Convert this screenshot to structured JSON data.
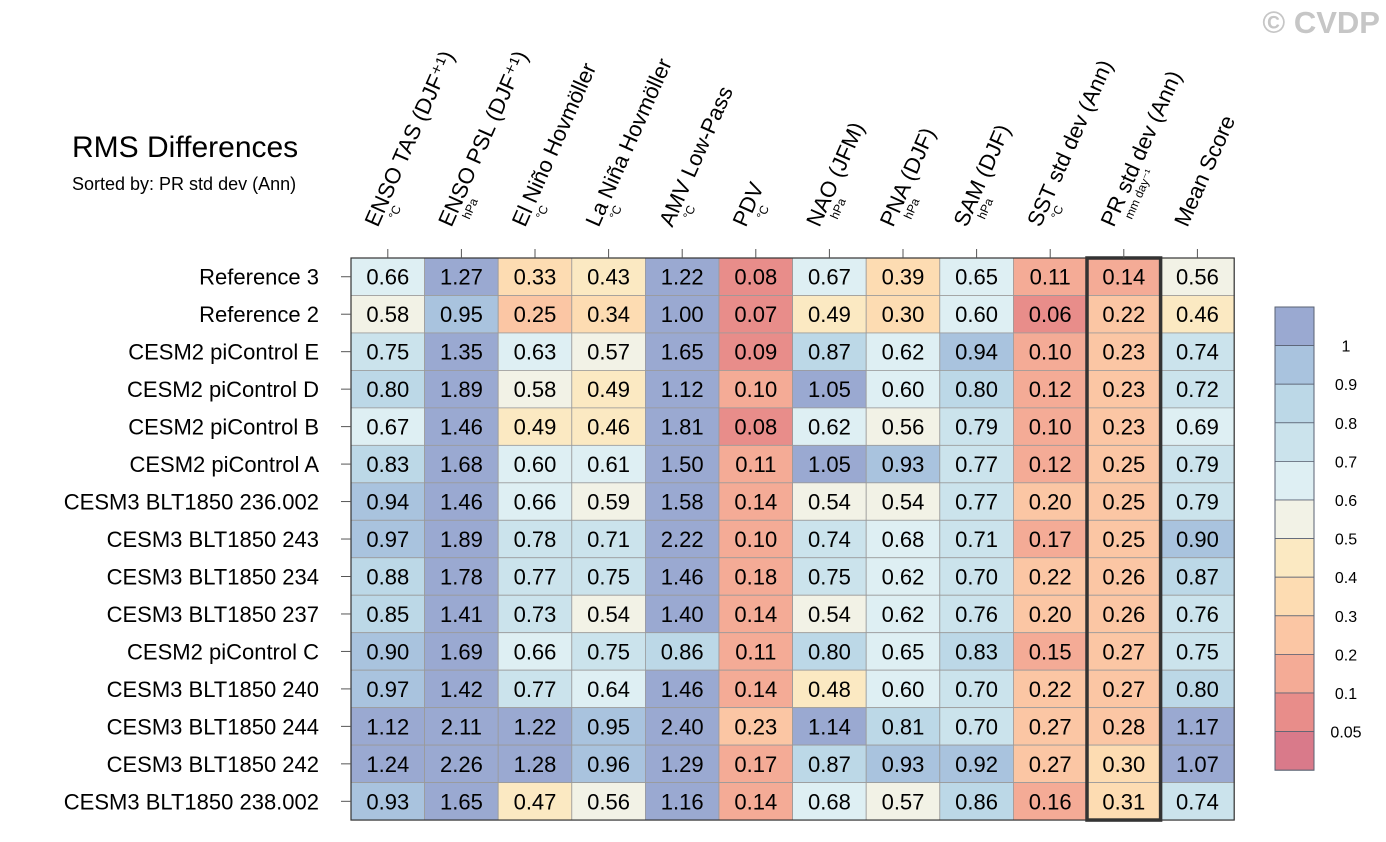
{
  "copyright": "© CVDP",
  "chart_data": {
    "type": "heatmap",
    "title": "RMS Differences",
    "subtitle": "Sorted by: PR std dev (Ann)",
    "columns": [
      {
        "label": "ENSO TAS (DJF⁺¹)",
        "unit": "°C"
      },
      {
        "label": "ENSO PSL (DJF⁺¹)",
        "unit": "hPa"
      },
      {
        "label": "El Niño Hovmöller",
        "unit": "°C"
      },
      {
        "label": "La Niña Hovmöller",
        "unit": "°C"
      },
      {
        "label": "AMV Low-Pass",
        "unit": "°C"
      },
      {
        "label": "PDV",
        "unit": "°C"
      },
      {
        "label": "NAO (JFM)",
        "unit": "hPa"
      },
      {
        "label": "PNA (DJF)",
        "unit": "hPa"
      },
      {
        "label": "SAM (DJF)",
        "unit": "hPa"
      },
      {
        "label": "SST std dev (Ann)",
        "unit": "°C"
      },
      {
        "label": "PR std dev (Ann)",
        "unit": "mm day⁻¹"
      },
      {
        "label": "Mean Score",
        "unit": ""
      }
    ],
    "highlighted_column": "PR std dev (Ann)",
    "rows": [
      {
        "label": "Reference 3",
        "values": [
          0.66,
          1.27,
          0.33,
          0.43,
          1.22,
          0.08,
          0.67,
          0.39,
          0.65,
          0.11,
          0.14,
          0.56
        ]
      },
      {
        "label": "Reference 2",
        "values": [
          0.58,
          0.95,
          0.25,
          0.34,
          1.0,
          0.07,
          0.49,
          0.3,
          0.6,
          0.06,
          0.22,
          0.46
        ]
      },
      {
        "label": "CESM2 piControl E",
        "values": [
          0.75,
          1.35,
          0.63,
          0.57,
          1.65,
          0.09,
          0.87,
          0.62,
          0.94,
          0.1,
          0.23,
          0.74
        ]
      },
      {
        "label": "CESM2 piControl D",
        "values": [
          0.8,
          1.89,
          0.58,
          0.49,
          1.12,
          0.1,
          1.05,
          0.6,
          0.8,
          0.12,
          0.23,
          0.72
        ]
      },
      {
        "label": "CESM2 piControl B",
        "values": [
          0.67,
          1.46,
          0.49,
          0.46,
          1.81,
          0.08,
          0.62,
          0.56,
          0.79,
          0.1,
          0.23,
          0.69
        ]
      },
      {
        "label": "CESM2 piControl A",
        "values": [
          0.83,
          1.68,
          0.6,
          0.61,
          1.5,
          0.11,
          1.05,
          0.93,
          0.77,
          0.12,
          0.25,
          0.79
        ]
      },
      {
        "label": "CESM3 BLT1850 236.002",
        "values": [
          0.94,
          1.46,
          0.66,
          0.59,
          1.58,
          0.14,
          0.54,
          0.54,
          0.77,
          0.2,
          0.25,
          0.79
        ]
      },
      {
        "label": "CESM3 BLT1850 243",
        "values": [
          0.97,
          1.89,
          0.78,
          0.71,
          2.22,
          0.1,
          0.74,
          0.68,
          0.71,
          0.17,
          0.25,
          0.9
        ]
      },
      {
        "label": "CESM3 BLT1850 234",
        "values": [
          0.88,
          1.78,
          0.77,
          0.75,
          1.46,
          0.18,
          0.75,
          0.62,
          0.7,
          0.22,
          0.26,
          0.87
        ]
      },
      {
        "label": "CESM3 BLT1850 237",
        "values": [
          0.85,
          1.41,
          0.73,
          0.54,
          1.4,
          0.14,
          0.54,
          0.62,
          0.76,
          0.2,
          0.26,
          0.76
        ]
      },
      {
        "label": "CESM2 piControl C",
        "values": [
          0.9,
          1.69,
          0.66,
          0.75,
          0.86,
          0.11,
          0.8,
          0.65,
          0.83,
          0.15,
          0.27,
          0.75
        ]
      },
      {
        "label": "CESM3 BLT1850 240",
        "values": [
          0.97,
          1.42,
          0.77,
          0.64,
          1.46,
          0.14,
          0.48,
          0.6,
          0.7,
          0.22,
          0.27,
          0.8
        ]
      },
      {
        "label": "CESM3 BLT1850 244",
        "values": [
          1.12,
          2.11,
          1.22,
          0.95,
          2.4,
          0.23,
          1.14,
          0.81,
          0.7,
          0.27,
          0.28,
          1.17
        ]
      },
      {
        "label": "CESM3 BLT1850 242",
        "values": [
          1.24,
          2.26,
          1.28,
          0.96,
          1.29,
          0.17,
          0.87,
          0.93,
          0.92,
          0.27,
          0.3,
          1.07
        ]
      },
      {
        "label": "CESM3 BLT1850 238.002",
        "values": [
          0.93,
          1.65,
          0.47,
          0.56,
          1.16,
          0.14,
          0.68,
          0.57,
          0.86,
          0.16,
          0.31,
          0.74
        ]
      }
    ],
    "colorbar": {
      "levels": [
        "1",
        "0.9",
        "0.8",
        "0.7",
        "0.6",
        "0.5",
        "0.4",
        "0.3",
        "0.2",
        "0.1",
        "0.05"
      ],
      "thresholds": [
        1.0,
        0.9,
        0.8,
        0.7,
        0.6,
        0.5,
        0.4,
        0.3,
        0.2,
        0.1,
        0.05
      ],
      "colors": [
        "#9aa9d1",
        "#a9c3de",
        "#bcd8e7",
        "#cbe3ec",
        "#deeff3",
        "#f2f2e6",
        "#fbe9c2",
        "#fddcb2",
        "#fbc6a4",
        "#f4ab96",
        "#e88d8a",
        "#d97a8a"
      ]
    }
  }
}
